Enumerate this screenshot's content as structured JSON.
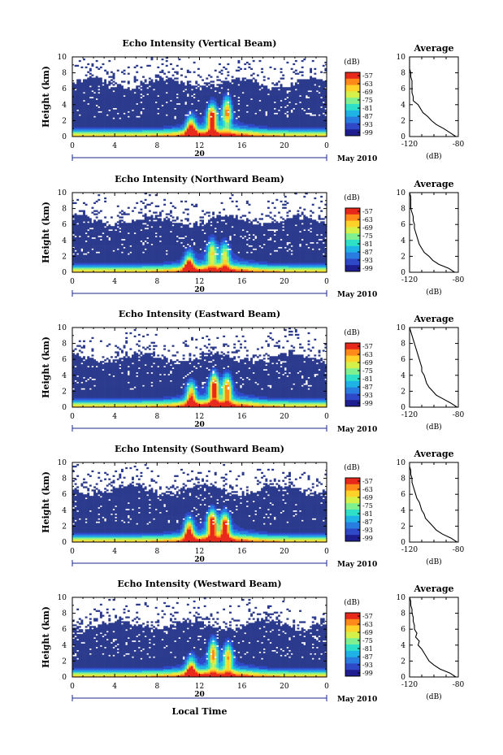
{
  "colors": {
    "background_echo": "#2b3a8c",
    "no_data": "#ffffff",
    "colormap": [
      "#1e1e90",
      "#2f49c8",
      "#2a7de0",
      "#1fb3e6",
      "#2ee0c8",
      "#7ff090",
      "#d6f04a",
      "#ffd22a",
      "#ff8a1a",
      "#e8281a"
    ]
  },
  "footer": {
    "x_label": "Local Time"
  },
  "chart_data": [
    {
      "type": "heatmap",
      "title": "Echo Intensity (Vertical Beam)",
      "ylabel": "Height (km)",
      "ylim": [
        0,
        10
      ],
      "xlim": [
        0,
        24
      ],
      "x_ticks": [
        "0",
        "4",
        "8",
        "12",
        "16",
        "20",
        "0"
      ],
      "y_ticks": [
        "0",
        "2",
        "4",
        "6",
        "8",
        "10"
      ],
      "date_label": "20",
      "month_label": "May 2010",
      "colorbar": {
        "unit": "(dB)",
        "ticks": [
          "-57",
          "-63",
          "-69",
          "-75",
          "-81",
          "-87",
          "-93",
          "-99"
        ]
      },
      "profile": {
        "title": "Average",
        "xlabel": "(dB)",
        "x_ticks": [
          "-120",
          "-80"
        ],
        "xlim": [
          -120,
          -80
        ],
        "y": [
          0,
          0.5,
          1,
          1.5,
          2,
          2.5,
          3,
          3.5,
          4,
          4.5,
          5,
          5.5,
          6,
          6.5,
          7,
          7.5,
          8,
          8.5,
          9,
          9.5,
          10
        ],
        "x": [
          -82,
          -87,
          -92,
          -98,
          -102,
          -105,
          -109,
          -111,
          -113,
          -117,
          -117,
          -118,
          -118,
          -118,
          -118,
          -119,
          -119,
          -120,
          -120,
          -120,
          -120
        ]
      }
    },
    {
      "type": "heatmap",
      "title": "Echo Intensity (Northward Beam)",
      "ylabel": "Height (km)",
      "ylim": [
        0,
        10
      ],
      "xlim": [
        0,
        24
      ],
      "x_ticks": [
        "0",
        "4",
        "8",
        "12",
        "16",
        "20",
        "0"
      ],
      "y_ticks": [
        "0",
        "2",
        "4",
        "6",
        "8",
        "10"
      ],
      "date_label": "20",
      "month_label": "May 2010",
      "colorbar": {
        "unit": "(dB)",
        "ticks": [
          "-57",
          "-63",
          "-69",
          "-75",
          "-81",
          "-87",
          "-93",
          "-99"
        ]
      },
      "profile": {
        "title": "Average",
        "xlabel": "(dB)",
        "x_ticks": [
          "-120",
          "-80"
        ],
        "xlim": [
          -120,
          -80
        ],
        "y": [
          0,
          0.5,
          1,
          1.5,
          2,
          2.5,
          3,
          3.5,
          4,
          4.5,
          5,
          5.5,
          6,
          6.5,
          7,
          7.5,
          8,
          8.5,
          9,
          9.5,
          10
        ],
        "x": [
          -83,
          -88,
          -96,
          -101,
          -104,
          -108,
          -110,
          -112,
          -113,
          -114,
          -115,
          -116,
          -116,
          -117,
          -117,
          -118,
          -119,
          -119,
          -119,
          -119,
          -120
        ]
      }
    },
    {
      "type": "heatmap",
      "title": "Echo Intensity (Eastward Beam)",
      "ylabel": "Height (km)",
      "ylim": [
        0,
        10
      ],
      "xlim": [
        0,
        24
      ],
      "x_ticks": [
        "0",
        "4",
        "8",
        "12",
        "16",
        "20",
        "0"
      ],
      "y_ticks": [
        "0",
        "2",
        "4",
        "6",
        "8",
        "10"
      ],
      "date_label": "20",
      "month_label": "May 2010",
      "colorbar": {
        "unit": "(dB)",
        "ticks": [
          "-57",
          "-63",
          "-69",
          "-75",
          "-81",
          "-87",
          "-93",
          "-99"
        ]
      },
      "profile": {
        "title": "Average",
        "xlabel": "(dB)",
        "x_ticks": [
          "-120",
          "-80"
        ],
        "xlim": [
          -120,
          -80
        ],
        "y": [
          0,
          0.5,
          1,
          1.5,
          2,
          2.5,
          3,
          3.5,
          4,
          4.5,
          5,
          5.5,
          6,
          6.5,
          7,
          7.5,
          8,
          8.5,
          9,
          9.5,
          10
        ],
        "x": [
          -81,
          -86,
          -92,
          -98,
          -101,
          -104,
          -106,
          -107,
          -108,
          -110,
          -110,
          -111,
          -112,
          -113,
          -114,
          -115,
          -116,
          -117,
          -118,
          -119,
          -120
        ]
      }
    },
    {
      "type": "heatmap",
      "title": "Echo Intensity (Southward Beam)",
      "ylabel": "Height (km)",
      "ylim": [
        0,
        10
      ],
      "xlim": [
        0,
        24
      ],
      "x_ticks": [
        "0",
        "4",
        "8",
        "12",
        "16",
        "20",
        "0"
      ],
      "y_ticks": [
        "0",
        "2",
        "4",
        "6",
        "8",
        "10"
      ],
      "date_label": "20",
      "month_label": "May 2010",
      "colorbar": {
        "unit": "(dB)",
        "ticks": [
          "-57",
          "-63",
          "-69",
          "-75",
          "-81",
          "-87",
          "-93",
          "-99"
        ]
      },
      "profile": {
        "title": "Average",
        "xlabel": "(dB)",
        "x_ticks": [
          "-120",
          "-80"
        ],
        "xlim": [
          -120,
          -80
        ],
        "y": [
          0,
          0.5,
          1,
          1.5,
          2,
          2.5,
          3,
          3.5,
          4,
          4.5,
          5,
          5.5,
          6,
          6.5,
          7,
          7.5,
          8,
          8.5,
          9,
          9.5,
          10
        ],
        "x": [
          -81,
          -86,
          -93,
          -98,
          -101,
          -104,
          -107,
          -108,
          -110,
          -111,
          -112,
          -114,
          -115,
          -116,
          -117,
          -118,
          -118,
          -119,
          -119,
          -120,
          -120
        ]
      }
    },
    {
      "type": "heatmap",
      "title": "Echo Intensity (Westward Beam)",
      "ylabel": "Height (km)",
      "ylim": [
        0,
        10
      ],
      "xlim": [
        0,
        24
      ],
      "x_ticks": [
        "0",
        "4",
        "8",
        "12",
        "16",
        "20",
        "0"
      ],
      "y_ticks": [
        "0",
        "2",
        "4",
        "6",
        "8",
        "10"
      ],
      "date_label": "20",
      "month_label": "May 2010",
      "colorbar": {
        "unit": "(dB)",
        "ticks": [
          "-57",
          "-63",
          "-69",
          "-75",
          "-81",
          "-87",
          "-93",
          "-99"
        ]
      },
      "profile": {
        "title": "Average",
        "xlabel": "(dB)",
        "x_ticks": [
          "-120",
          "-80"
        ],
        "xlim": [
          -120,
          -80
        ],
        "y": [
          0,
          0.5,
          1,
          1.5,
          2,
          2.5,
          3,
          3.5,
          4,
          4.5,
          5,
          5.5,
          6,
          6.5,
          7,
          7.5,
          8,
          8.5,
          9,
          9.5,
          10
        ],
        "x": [
          -82,
          -87,
          -95,
          -100,
          -104,
          -106,
          -108,
          -110,
          -113,
          -112,
          -115,
          -114,
          -116,
          -116,
          -117,
          -117,
          -118,
          -118,
          -119,
          -119,
          -120
        ]
      }
    }
  ]
}
